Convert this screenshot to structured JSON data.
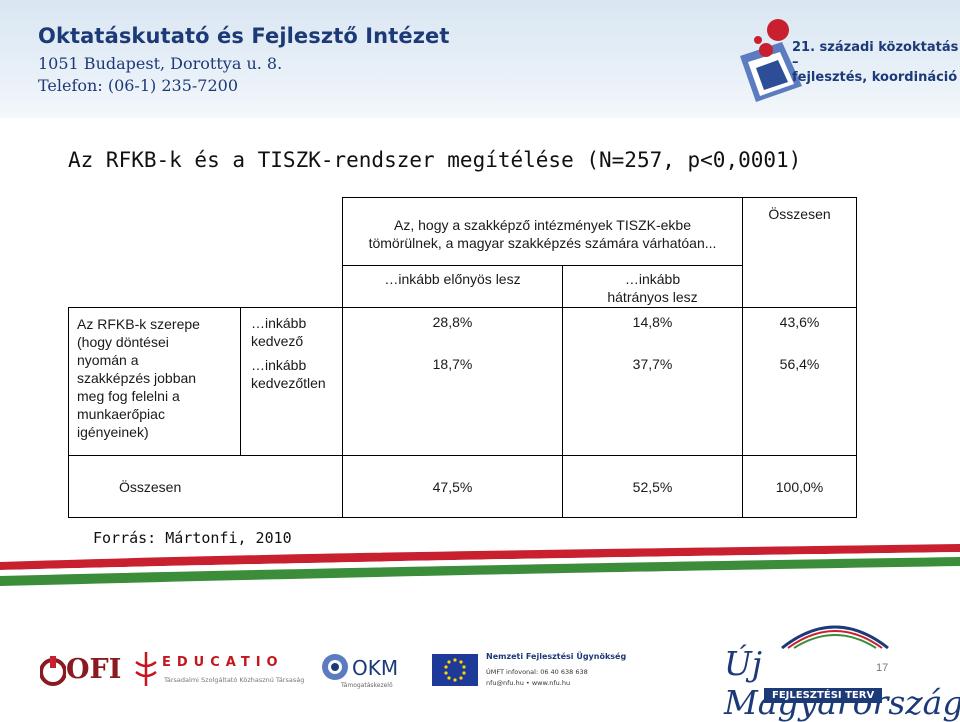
{
  "header": {
    "institute_name": "Oktatáskutató és Fejlesztő Intézet",
    "address": "1051 Budapest, Dorottya u. 8.",
    "phone": "Telefon: (06-1) 235-7200",
    "logo_text_line1": "21. századi közoktatás –",
    "logo_text_line2": "fejlesztés, koordináció"
  },
  "title": "Az RFKB-k és a TISZK-rendszer megítélése (N=257, p<0,0001)",
  "table": {
    "header_question_line1": "Az, hogy a szakképző intézmények TISZK-ekbe",
    "header_question_line2": "tömörülnek, a magyar szakképzés számára várhatóan...",
    "col_advantage": "…inkább előnyös lesz",
    "col_disadv_line1": "…inkább",
    "col_disadv_line2": "hátrányos lesz",
    "col_total": "Összesen",
    "row_question": [
      "Az RFKB-k szerepe",
      "(hogy döntései",
      "nyomán a",
      "szakképzés jobban",
      "meg fog felelni a",
      "munkaerőpiac",
      "igényeinek)"
    ],
    "sub_favorable_line1": "…inkább",
    "sub_favorable_line2": "kedvező",
    "sub_unfavorable_line1": "…inkább",
    "sub_unfavorable_line2": "kedvezőtlen",
    "rows": [
      {
        "advantage": "28,8%",
        "disadvantage": "14,8%",
        "total": "43,6%"
      },
      {
        "advantage": "18,7%",
        "disadvantage": "37,7%",
        "total": "56,4%"
      }
    ],
    "total_row": {
      "label": "Összesen",
      "advantage": "47,5%",
      "disadvantage": "52,5%",
      "total": "100,0%"
    }
  },
  "source": "Forrás: Mártonfi, 2010",
  "footer": {
    "ofi": "OFI",
    "educatio": "EDUCATIO",
    "educatio_sub": "Társadalmi Szolgáltató Közhasznú Társaság",
    "okm": "OKM",
    "okm_sub": "Támogatáskezelő",
    "nfu_title": "Nemzeti Fejlesztési Ügynökség",
    "nfu_line1": "ÚMFT infovonal: 06 40 638 638",
    "nfu_line2": "nfu@nfu.hu • www.nfu.hu",
    "uj_magyarorszag": "Új Magyarország",
    "fejlesztesi_terv": "FEJLESZTÉSI TERV",
    "page_number": "17"
  },
  "colors": {
    "navy": "#1d3a78",
    "flag_red": "#c8202f",
    "flag_green": "#3c8d3a",
    "header_bg": "#dce8f3"
  }
}
